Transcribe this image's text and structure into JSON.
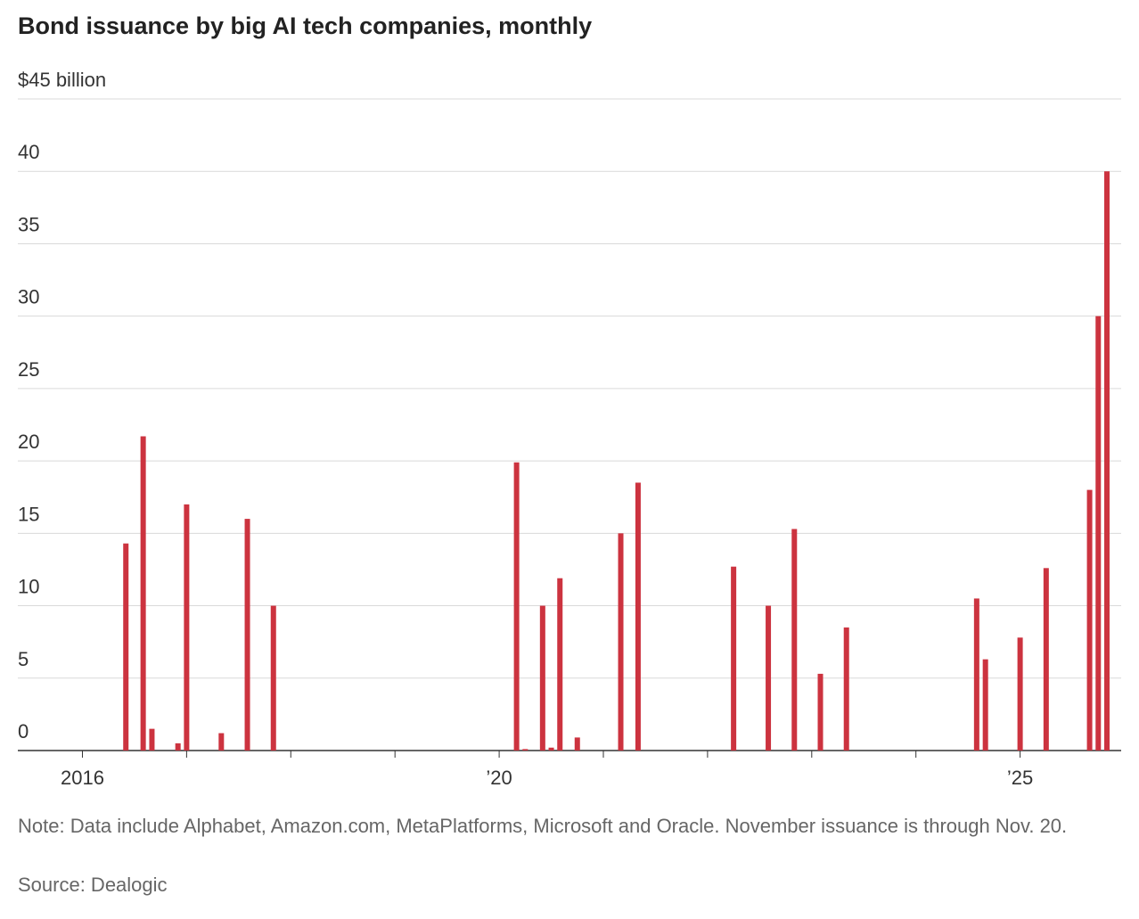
{
  "chart_data": {
    "type": "bar",
    "title": "Bond issuance by big AI tech companies, monthly",
    "x": [
      2016.417,
      2016.583,
      2016.667,
      2016.917,
      2017.0,
      2017.333,
      2017.583,
      2017.833,
      2020.167,
      2020.25,
      2020.417,
      2020.5,
      2020.583,
      2020.75,
      2021.167,
      2021.333,
      2022.25,
      2022.583,
      2022.833,
      2023.083,
      2023.333,
      2024.583,
      2024.667,
      2025.0,
      2025.25,
      2025.667,
      2025.75,
      2025.833
    ],
    "values": [
      14.3,
      21.7,
      1.5,
      0.5,
      17.0,
      1.2,
      16.0,
      10.0,
      19.9,
      0.1,
      10.0,
      0.2,
      11.9,
      0.9,
      15.0,
      18.5,
      12.7,
      10.0,
      15.3,
      5.3,
      8.5,
      10.5,
      6.3,
      7.8,
      12.6,
      18.0,
      30.0,
      40.0
    ],
    "color": "#cc333f",
    "xlim": [
      2015.38,
      2025.97
    ],
    "xticks": [
      2016,
      {
        "value": 2020,
        "label": "’20"
      },
      {
        "value": 2025,
        "label": "’25"
      }
    ],
    "xminorticks": [
      2017,
      2018,
      2019,
      2021,
      2022,
      2023,
      2024
    ],
    "ylim": [
      0,
      45
    ],
    "yticks": [
      0,
      5,
      10,
      15,
      20,
      25,
      30,
      35,
      40,
      {
        "value": 45,
        "label": "$45 billion"
      }
    ],
    "grid": true,
    "note": "Note: Data include Alphabet, Amazon.com, MetaPlatforms, Microsoft and Oracle. November issuance is through Nov. 20.",
    "source": "Source: Dealogic"
  }
}
